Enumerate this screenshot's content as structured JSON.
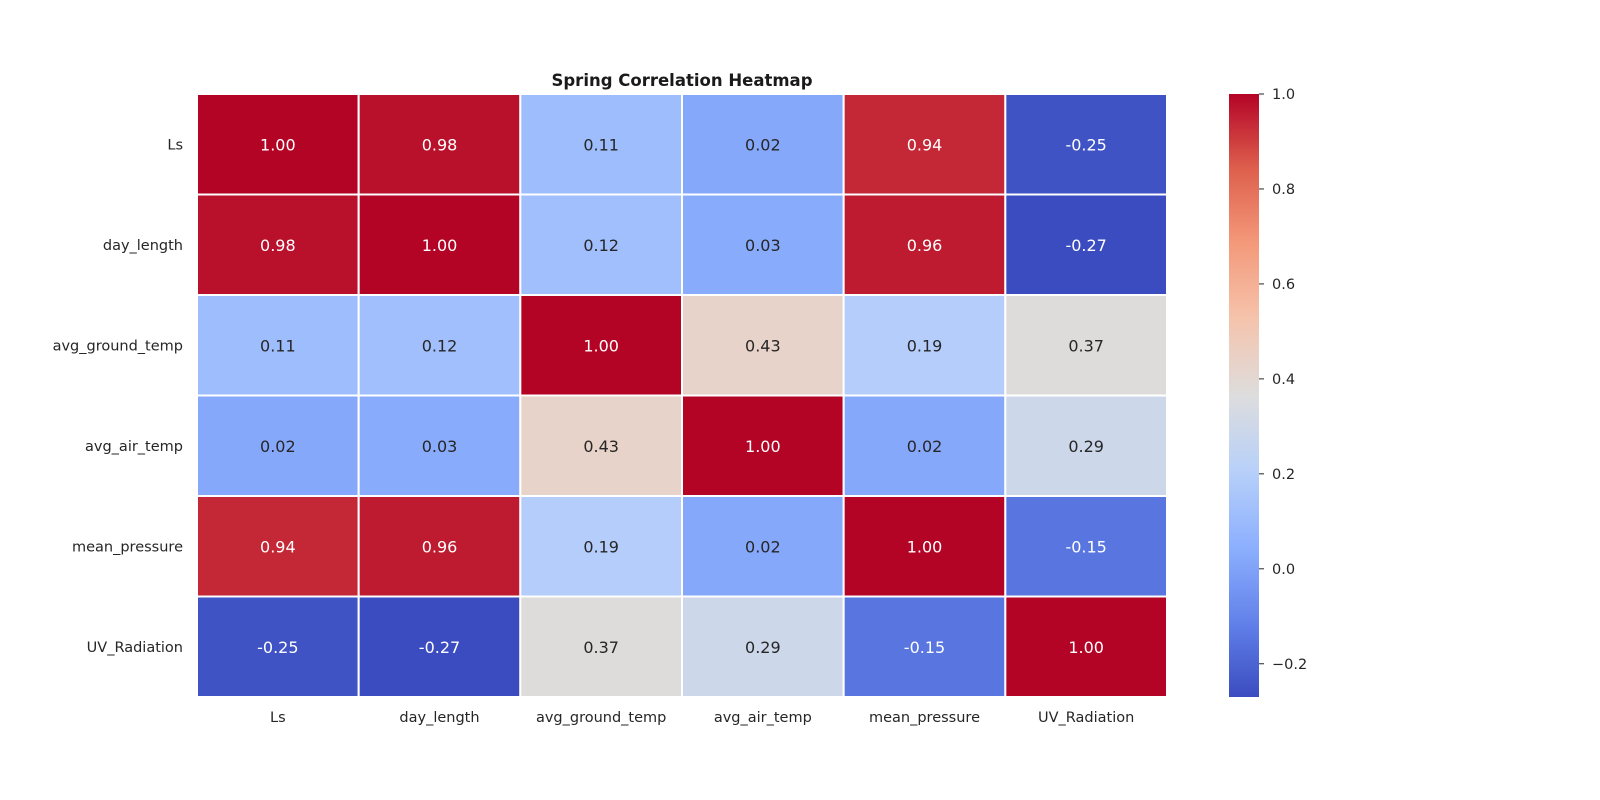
{
  "chart_data": {
    "type": "heatmap",
    "title": "Spring Correlation Heatmap",
    "row_labels": [
      "Ls",
      "day_length",
      "avg_ground_temp",
      "avg_air_temp",
      "mean_pressure",
      "UV_Radiation"
    ],
    "col_labels": [
      "Ls",
      "day_length",
      "avg_ground_temp",
      "avg_air_temp",
      "mean_pressure",
      "UV_Radiation"
    ],
    "values": [
      [
        1.0,
        0.98,
        0.11,
        0.02,
        0.94,
        -0.25
      ],
      [
        0.98,
        1.0,
        0.12,
        0.03,
        0.96,
        -0.27
      ],
      [
        0.11,
        0.12,
        1.0,
        0.43,
        0.19,
        0.37
      ],
      [
        0.02,
        0.03,
        0.43,
        1.0,
        0.02,
        0.29
      ],
      [
        0.94,
        0.96,
        0.19,
        0.02,
        1.0,
        -0.15
      ],
      [
        -0.25,
        -0.27,
        0.37,
        0.29,
        -0.15,
        1.0
      ]
    ],
    "value_format": "0.00",
    "colormap": "coolwarm",
    "vmin": -0.27,
    "vmax": 1.0,
    "colorbar_ticks": [
      "1.0",
      "0.8",
      "0.6",
      "0.4",
      "0.2",
      "0.0",
      "−0.2"
    ],
    "colorbar_tick_values": [
      1.0,
      0.8,
      0.6,
      0.4,
      0.2,
      0.0,
      -0.2
    ],
    "grid_line_color": "#ffffff",
    "colors": {
      "low": "#3b4cc0",
      "mid": "#dddcdc",
      "high": "#b40426"
    }
  }
}
